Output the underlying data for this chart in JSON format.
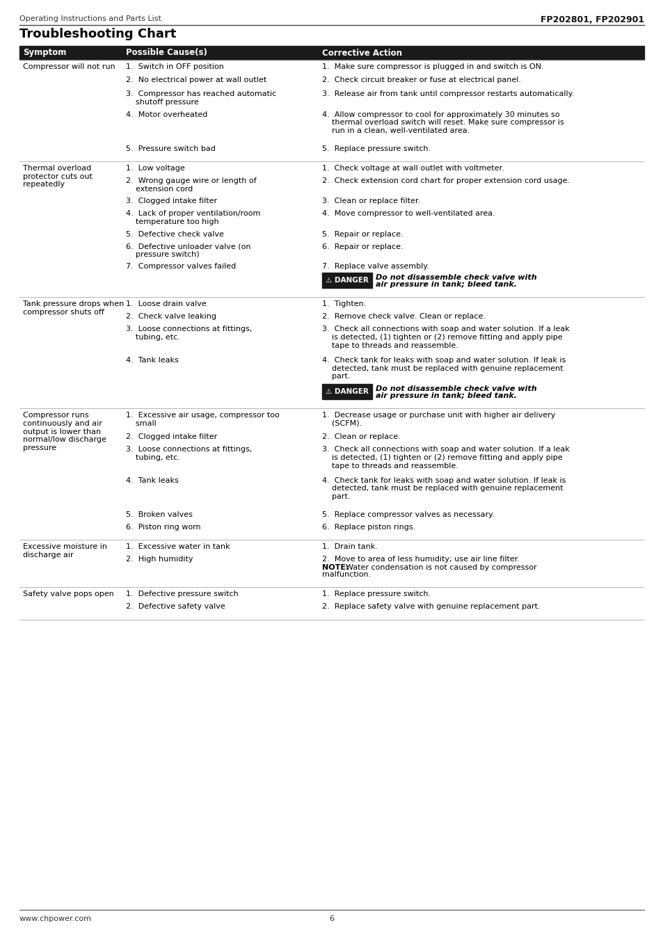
{
  "page_header_left": "Operating Instructions and Parts List",
  "page_header_right": "FP202801, FP202901",
  "title": "Troubleshooting Chart",
  "col_headers": [
    "Symptom",
    "Possible Cause(s)",
    "Corrective Action"
  ],
  "header_bg": "#1a1a1a",
  "header_fg": "#ffffff",
  "danger_bg": "#1a1a1a",
  "danger_fg": "#ffffff",
  "danger_label": "⚠ DANGER",
  "bg_color": "#ffffff",
  "text_color": "#000000",
  "font_size": 8.0,
  "header_font_size": 8.5,
  "footer_left": "www.chpower.com",
  "footer_page": "6"
}
